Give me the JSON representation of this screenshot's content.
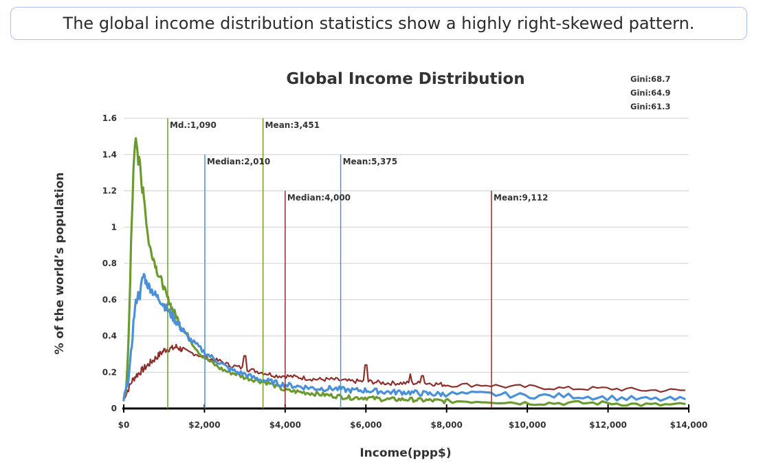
{
  "caption": "The global income distribution statistics show a highly right-skewed pattern.",
  "chart_data": {
    "type": "line",
    "title": "Global Income Distribution",
    "xlabel": "Income(ppp$)",
    "ylabel": "% of the world’s population",
    "xlim": [
      0,
      14000
    ],
    "ylim": [
      0,
      1.6
    ],
    "x_ticks": [
      0,
      2000,
      4000,
      6000,
      8000,
      10000,
      12000,
      14000
    ],
    "x_tick_labels": [
      "$0",
      "$2,000",
      "$4,000",
      "$6,000",
      "$8,000",
      "$10,000",
      "$12,000",
      "$14,000"
    ],
    "y_ticks": [
      0,
      0.2,
      0.4,
      0.6,
      0.8,
      1,
      1.2,
      1.4,
      1.6
    ],
    "y_tick_labels": [
      "0",
      "0.2",
      "0.4",
      "0.6",
      "0.8",
      "1",
      "1.2",
      "1.4",
      "1.6"
    ],
    "grid": true,
    "gini_labels": [
      "Gini:68.7",
      "Gini:64.9",
      "Gini:61.3"
    ],
    "series_colors": [
      "#6b9a2f",
      "#4a90d9",
      "#8e2e2a"
    ],
    "series": [
      {
        "color": "#6b9a2f",
        "points": [
          [
            0,
            0.05
          ],
          [
            60,
            0.12
          ],
          [
            110,
            0.3
          ],
          [
            150,
            0.6
          ],
          [
            180,
            0.9
          ],
          [
            210,
            1.1
          ],
          [
            240,
            1.3
          ],
          [
            270,
            1.45
          ],
          [
            300,
            1.5
          ],
          [
            330,
            1.46
          ],
          [
            360,
            1.35
          ],
          [
            390,
            1.38
          ],
          [
            420,
            1.3
          ],
          [
            450,
            1.2
          ],
          [
            480,
            1.22
          ],
          [
            510,
            1.15
          ],
          [
            540,
            1.08
          ],
          [
            570,
            1.0
          ],
          [
            600,
            0.95
          ],
          [
            630,
            0.9
          ],
          [
            660,
            0.88
          ],
          [
            700,
            0.85
          ],
          [
            750,
            0.82
          ],
          [
            800,
            0.78
          ],
          [
            850,
            0.74
          ],
          [
            900,
            0.72
          ],
          [
            950,
            0.7
          ],
          [
            1000,
            0.66
          ],
          [
            1050,
            0.63
          ],
          [
            1100,
            0.6
          ],
          [
            1150,
            0.58
          ],
          [
            1200,
            0.55
          ],
          [
            1300,
            0.51
          ],
          [
            1400,
            0.46
          ],
          [
            1500,
            0.42
          ],
          [
            1600,
            0.4
          ],
          [
            1700,
            0.36
          ],
          [
            1800,
            0.33
          ],
          [
            1900,
            0.3
          ],
          [
            2000,
            0.28
          ],
          [
            2200,
            0.25
          ],
          [
            2400,
            0.22
          ],
          [
            2600,
            0.2
          ],
          [
            2800,
            0.19
          ],
          [
            3000,
            0.17
          ],
          [
            3200,
            0.16
          ],
          [
            3400,
            0.15
          ],
          [
            3600,
            0.14
          ],
          [
            3800,
            0.12
          ],
          [
            4000,
            0.1
          ],
          [
            4400,
            0.09
          ],
          [
            4800,
            0.08
          ],
          [
            5200,
            0.07
          ],
          [
            5600,
            0.06
          ],
          [
            6000,
            0.06
          ],
          [
            6500,
            0.05
          ],
          [
            7000,
            0.05
          ],
          [
            8000,
            0.04
          ],
          [
            9000,
            0.04
          ],
          [
            10000,
            0.03
          ],
          [
            11000,
            0.03
          ],
          [
            12000,
            0.03
          ],
          [
            13000,
            0.02
          ],
          [
            14000,
            0.02
          ]
        ],
        "noise": 0.012
      },
      {
        "color": "#4a90d9",
        "points": [
          [
            0,
            0.05
          ],
          [
            80,
            0.12
          ],
          [
            150,
            0.22
          ],
          [
            200,
            0.35
          ],
          [
            250,
            0.5
          ],
          [
            300,
            0.58
          ],
          [
            350,
            0.63
          ],
          [
            400,
            0.62
          ],
          [
            450,
            0.7
          ],
          [
            500,
            0.74
          ],
          [
            550,
            0.7
          ],
          [
            600,
            0.68
          ],
          [
            700,
            0.65
          ],
          [
            800,
            0.62
          ],
          [
            900,
            0.6
          ],
          [
            1000,
            0.57
          ],
          [
            1100,
            0.54
          ],
          [
            1200,
            0.51
          ],
          [
            1300,
            0.48
          ],
          [
            1400,
            0.45
          ],
          [
            1500,
            0.42
          ],
          [
            1600,
            0.39
          ],
          [
            1800,
            0.35
          ],
          [
            2000,
            0.31
          ],
          [
            2200,
            0.28
          ],
          [
            2400,
            0.25
          ],
          [
            2600,
            0.22
          ],
          [
            2800,
            0.2
          ],
          [
            3000,
            0.19
          ],
          [
            3200,
            0.17
          ],
          [
            3400,
            0.16
          ],
          [
            3600,
            0.15
          ],
          [
            3800,
            0.14
          ],
          [
            4000,
            0.13
          ],
          [
            4400,
            0.12
          ],
          [
            4800,
            0.11
          ],
          [
            5200,
            0.11
          ],
          [
            5600,
            0.1
          ],
          [
            6000,
            0.1
          ],
          [
            6600,
            0.09
          ],
          [
            7000,
            0.09
          ],
          [
            7600,
            0.08
          ],
          [
            8000,
            0.08
          ],
          [
            9000,
            0.08
          ],
          [
            10000,
            0.07
          ],
          [
            11000,
            0.07
          ],
          [
            12000,
            0.06
          ],
          [
            13000,
            0.05
          ],
          [
            14000,
            0.05
          ]
        ],
        "noise": 0.015
      },
      {
        "color": "#8e2e2a",
        "points": [
          [
            0,
            0.06
          ],
          [
            100,
            0.1
          ],
          [
            200,
            0.15
          ],
          [
            300,
            0.18
          ],
          [
            400,
            0.2
          ],
          [
            500,
            0.22
          ],
          [
            600,
            0.24
          ],
          [
            700,
            0.26
          ],
          [
            800,
            0.28
          ],
          [
            900,
            0.3
          ],
          [
            1000,
            0.32
          ],
          [
            1100,
            0.33
          ],
          [
            1200,
            0.33
          ],
          [
            1300,
            0.34
          ],
          [
            1400,
            0.33
          ],
          [
            1500,
            0.32
          ],
          [
            1600,
            0.31
          ],
          [
            1800,
            0.3
          ],
          [
            2000,
            0.28
          ],
          [
            2200,
            0.27
          ],
          [
            2400,
            0.26
          ],
          [
            2600,
            0.24
          ],
          [
            2800,
            0.23
          ],
          [
            3000,
            0.22
          ],
          [
            3200,
            0.21
          ],
          [
            3400,
            0.2
          ],
          [
            3600,
            0.19
          ],
          [
            3800,
            0.18
          ],
          [
            4000,
            0.18
          ],
          [
            4400,
            0.17
          ],
          [
            4800,
            0.16
          ],
          [
            5200,
            0.16
          ],
          [
            5600,
            0.15
          ],
          [
            6000,
            0.15
          ],
          [
            6500,
            0.14
          ],
          [
            7000,
            0.14
          ],
          [
            7500,
            0.14
          ],
          [
            8000,
            0.13
          ],
          [
            8500,
            0.13
          ],
          [
            9000,
            0.13
          ],
          [
            9500,
            0.12
          ],
          [
            10000,
            0.12
          ],
          [
            11000,
            0.11
          ],
          [
            12000,
            0.11
          ],
          [
            13000,
            0.1
          ],
          [
            14000,
            0.1
          ]
        ],
        "noise": 0.012,
        "spikes": [
          [
            3000,
            0.29
          ],
          [
            6000,
            0.24
          ],
          [
            7100,
            0.19
          ],
          [
            7400,
            0.18
          ]
        ]
      }
    ],
    "reference_lines": [
      {
        "x": 1090,
        "label": "Md.:1,090",
        "color": "#6b9a2f",
        "top": 1.6
      },
      {
        "x": 3451,
        "label": "Mean:3,451",
        "color": "#6b9a2f",
        "top": 1.6
      },
      {
        "x": 2010,
        "label": "Median:2,010",
        "color": "#4a90d9",
        "top": 1.4
      },
      {
        "x": 5375,
        "label": "Mean:5,375",
        "color": "#4a90d9",
        "top": 1.4
      },
      {
        "x": 4000,
        "label": "Median:4,000",
        "color": "#8e2e2a",
        "top": 1.2
      },
      {
        "x": 9112,
        "label": "Mean:9,112",
        "color": "#8e2e2a",
        "top": 1.2
      }
    ]
  }
}
